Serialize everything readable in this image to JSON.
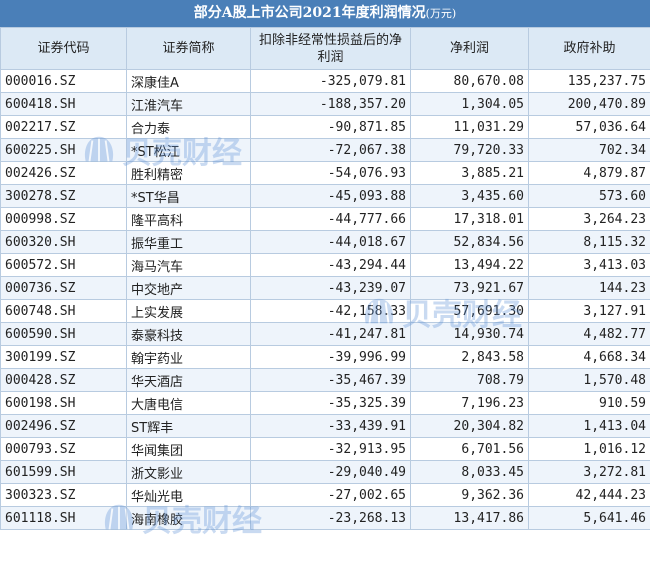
{
  "title": "部分A股上市公司2021年度利润情况",
  "unit": "(万元)",
  "columns": [
    "证券代码",
    "证券简称",
    "扣除非经常性损益后的净利润",
    "净利润",
    "政府补助"
  ],
  "rows": [
    [
      "000016.SZ",
      "深康佳A",
      "-325,079.81",
      "80,670.08",
      "135,237.75"
    ],
    [
      "600418.SH",
      "江淮汽车",
      "-188,357.20",
      "1,304.05",
      "200,470.89"
    ],
    [
      "002217.SZ",
      "合力泰",
      "-90,871.85",
      "11,031.29",
      "57,036.64"
    ],
    [
      "600225.SH",
      "*ST松江",
      "-72,067.38",
      "79,720.33",
      "702.34"
    ],
    [
      "002426.SZ",
      "胜利精密",
      "-54,076.93",
      "3,885.21",
      "4,879.87"
    ],
    [
      "300278.SZ",
      "*ST华昌",
      "-45,093.88",
      "3,435.60",
      "573.60"
    ],
    [
      "000998.SZ",
      "隆平高科",
      "-44,777.66",
      "17,318.01",
      "3,264.23"
    ],
    [
      "600320.SH",
      "振华重工",
      "-44,018.67",
      "52,834.56",
      "8,115.32"
    ],
    [
      "600572.SH",
      "海马汽车",
      "-43,294.44",
      "13,494.22",
      "3,413.03"
    ],
    [
      "000736.SZ",
      "中交地产",
      "-43,239.07",
      "73,921.67",
      "144.23"
    ],
    [
      "600748.SH",
      "上实发展",
      "-42,158.33",
      "57,691.30",
      "3,127.91"
    ],
    [
      "600590.SH",
      "泰豪科技",
      "-41,247.81",
      "14,930.74",
      "4,482.77"
    ],
    [
      "300199.SZ",
      "翰宇药业",
      "-39,996.99",
      "2,843.58",
      "4,668.34"
    ],
    [
      "000428.SZ",
      "华天酒店",
      "-35,467.39",
      "708.79",
      "1,570.48"
    ],
    [
      "600198.SH",
      "大唐电信",
      "-35,325.39",
      "7,196.23",
      "910.59"
    ],
    [
      "002496.SZ",
      "ST辉丰",
      "-33,439.91",
      "20,304.82",
      "1,413.04"
    ],
    [
      "000793.SZ",
      "华闻集团",
      "-32,913.95",
      "6,701.56",
      "1,016.12"
    ],
    [
      "601599.SH",
      "浙文影业",
      "-29,040.49",
      "8,033.45",
      "3,272.81"
    ],
    [
      "300323.SZ",
      "华灿光电",
      "-27,002.65",
      "9,362.36",
      "42,444.23"
    ],
    [
      "601118.SH",
      "海南橡胶",
      "-23,268.13",
      "13,417.86",
      "5,641.46"
    ]
  ],
  "watermark": "贝壳财经",
  "colors": {
    "header_bar": "#4a7fb8",
    "header_cells": "#dce9f5",
    "stripe": "#eef4fb",
    "border": "#b8cbe0",
    "watermark": "#5b8fd6"
  }
}
